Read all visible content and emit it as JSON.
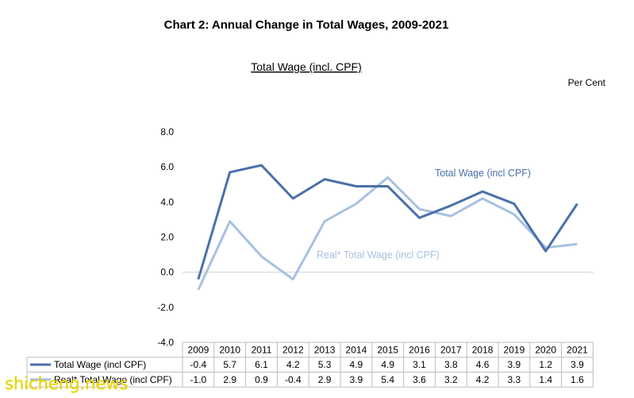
{
  "chart_data": {
    "type": "line",
    "title": "Chart 2: Annual Change in Total Wages, 2009-2021",
    "subtitle": "Total Wage (incl. CPF)",
    "unit_label": "Per Cent",
    "categories": [
      "2009",
      "2010",
      "2011",
      "2012",
      "2013",
      "2014",
      "2015",
      "2016",
      "2017",
      "2018",
      "2019",
      "2020",
      "2021"
    ],
    "ylim": [
      -4.0,
      8.0
    ],
    "yticks": [
      "8.0",
      "6.0",
      "4.0",
      "2.0",
      "0.0",
      "-2.0",
      "-4.0"
    ],
    "series": [
      {
        "name": "Total Wage (incl CPF)",
        "table_name": "Total Wage (incl CPF)",
        "color": "#4a70aa",
        "values": [
          -0.4,
          5.7,
          6.1,
          4.2,
          5.3,
          4.9,
          4.9,
          3.1,
          3.8,
          4.6,
          3.9,
          1.2,
          3.9
        ],
        "value_labels": [
          "-0.4",
          "5.7",
          "6.1",
          "4.2",
          "5.3",
          "4.9",
          "4.9",
          "3.1",
          "3.8",
          "4.6",
          "3.9",
          "1.2",
          "3.9"
        ]
      },
      {
        "name": "Real* Total Wage (incl CPF)",
        "table_name": "Real* Total Wage (incl CPF)",
        "color": "#a7c1e0",
        "values": [
          -1.0,
          2.9,
          0.9,
          -0.4,
          2.9,
          3.9,
          5.4,
          3.6,
          3.2,
          4.2,
          3.3,
          1.4,
          1.6
        ],
        "value_labels": [
          "-1.0",
          "2.9",
          "0.9",
          "-0.4",
          "2.9",
          "3.9",
          "5.4",
          "3.6",
          "3.2",
          "4.2",
          "3.3",
          "1.4",
          "1.6"
        ]
      }
    ],
    "grid": false,
    "legend": "data table"
  },
  "watermark": "shicheng.news"
}
